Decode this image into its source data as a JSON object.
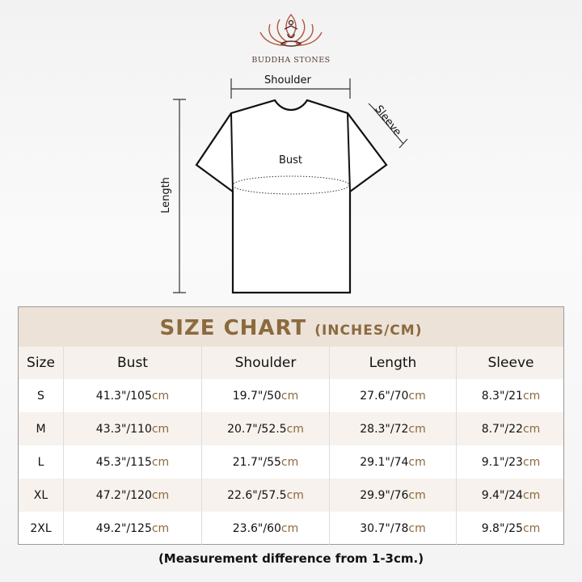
{
  "brand": {
    "name": "BUDDHA STONES",
    "accent": "#8b6a3e",
    "logo_color": "#b0553f"
  },
  "diagram": {
    "shoulder": "Shoulder",
    "sleeve": "Sleeve",
    "bust": "Bust",
    "length": "Length"
  },
  "table": {
    "title": "SIZE CHART",
    "title_units": "(INCHES/CM)",
    "headers": [
      "Size",
      "Bust",
      "Shoulder",
      "Length",
      "Sleeve"
    ],
    "unit_suffix": "cm",
    "rows": [
      {
        "size": "S",
        "bust": "41.3\"/105",
        "shoulder": "19.7\"/50",
        "length": "27.6\"/70",
        "sleeve": "8.3\"/21"
      },
      {
        "size": "M",
        "bust": "43.3\"/110",
        "shoulder": "20.7\"/52.5",
        "length": "28.3\"/72",
        "sleeve": "8.7\"/22"
      },
      {
        "size": "L",
        "bust": "45.3\"/115",
        "shoulder": "21.7\"/55",
        "length": "29.1\"/74",
        "sleeve": "9.1\"/23"
      },
      {
        "size": "XL",
        "bust": "47.2\"/120",
        "shoulder": "22.6\"/57.5",
        "length": "29.9\"/76",
        "sleeve": "9.4\"/24"
      },
      {
        "size": "2XL",
        "bust": "49.2\"/125",
        "shoulder": "23.6\"/60",
        "length": "30.7\"/78",
        "sleeve": "9.8\"/25"
      }
    ]
  },
  "note": "(Measurement difference from 1-3cm.)"
}
